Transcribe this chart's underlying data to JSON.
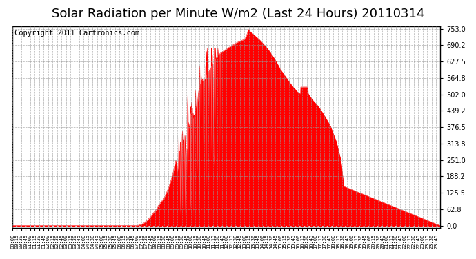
{
  "title": "Solar Radiation per Minute W/m2 (Last 24 Hours) 20110314",
  "copyright": "Copyright 2011 Cartronics.com",
  "y_max": 753.0,
  "y_ticks": [
    0.0,
    62.8,
    125.5,
    188.2,
    251.0,
    313.8,
    376.5,
    439.2,
    502.0,
    564.8,
    627.5,
    690.2,
    753.0
  ],
  "fill_color": "#FF0000",
  "line_color": "#FF0000",
  "bg_color": "#FFFFFF",
  "grid_color": "#AAAAAA",
  "dashed_line_color": "#FF0000",
  "title_fontsize": 13,
  "copyright_fontsize": 7.5,
  "times_key": [
    0,
    420,
    440,
    455,
    465,
    475,
    485,
    490,
    500,
    510,
    515,
    520,
    525,
    530,
    535,
    540,
    545,
    550,
    555,
    560,
    565,
    570,
    575,
    580,
    585,
    590,
    595,
    600,
    605,
    610,
    615,
    620,
    625,
    630,
    635,
    640,
    645,
    650,
    655,
    660,
    665,
    670,
    675,
    680,
    685,
    690,
    695,
    700,
    710,
    720,
    730,
    740,
    750,
    760,
    770,
    780,
    785,
    790,
    793,
    795,
    800,
    810,
    820,
    830,
    840,
    850,
    860,
    870,
    880,
    890,
    900,
    920,
    940,
    960,
    975,
    985,
    995,
    1010,
    1030,
    1050,
    1070,
    1090,
    1105,
    1115,
    1439
  ],
  "vals_key": [
    0,
    0,
    8,
    22,
    35,
    50,
    62,
    75,
    90,
    105,
    118,
    130,
    145,
    160,
    180,
    200,
    225,
    250,
    200,
    270,
    310,
    360,
    290,
    380,
    200,
    430,
    370,
    420,
    460,
    410,
    480,
    430,
    500,
    530,
    550,
    560,
    540,
    570,
    580,
    590,
    600,
    610,
    620,
    630,
    640,
    650,
    655,
    660,
    668,
    675,
    683,
    690,
    697,
    703,
    708,
    712,
    720,
    735,
    753,
    748,
    742,
    732,
    722,
    712,
    700,
    688,
    674,
    658,
    641,
    622,
    600,
    567,
    536,
    510,
    500,
    520,
    505,
    480,
    455,
    420,
    380,
    320,
    250,
    150,
    0
  ]
}
